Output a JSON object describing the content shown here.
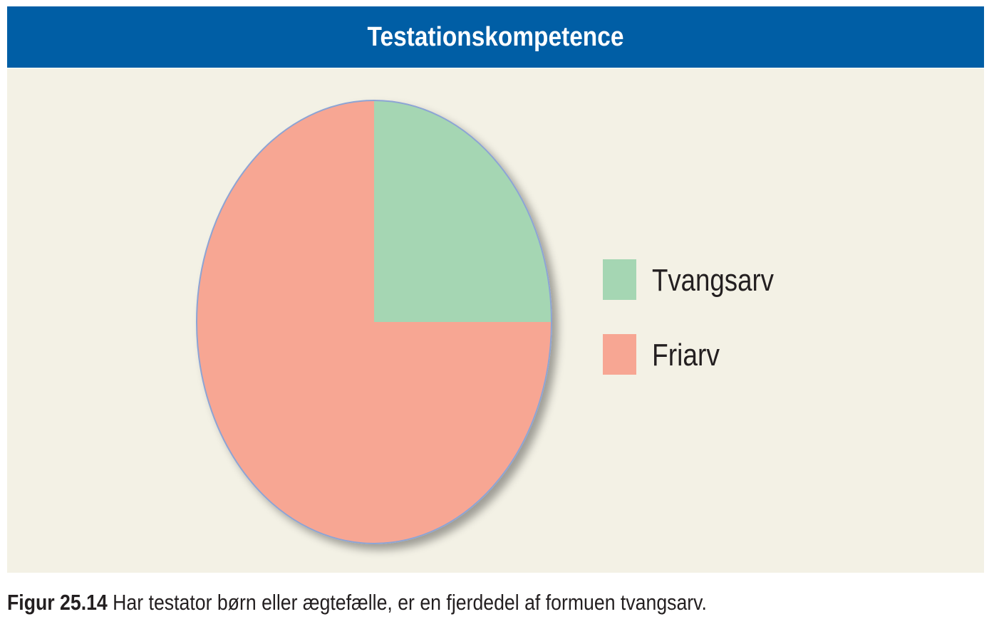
{
  "header": {
    "title": "Testationskompetence"
  },
  "caption": {
    "label": "Figur 25.14",
    "text": " Har testator børn eller ægtefælle, er en fjerdedel af formuen tvangsarv."
  },
  "colors": {
    "header_bg": "#005ea5",
    "panel_bg": "#f3f1e5",
    "pie_outline": "#8da4d4"
  },
  "chart_data": {
    "type": "pie",
    "title": "Testationskompetence",
    "start_angle": "12 o'clock, clockwise",
    "slices": [
      {
        "label": "Tvangsarv",
        "value": 25,
        "color": "#a5d6b3"
      },
      {
        "label": "Friarv",
        "value": 75,
        "color": "#f7a693"
      }
    ],
    "legend_position": "right"
  }
}
